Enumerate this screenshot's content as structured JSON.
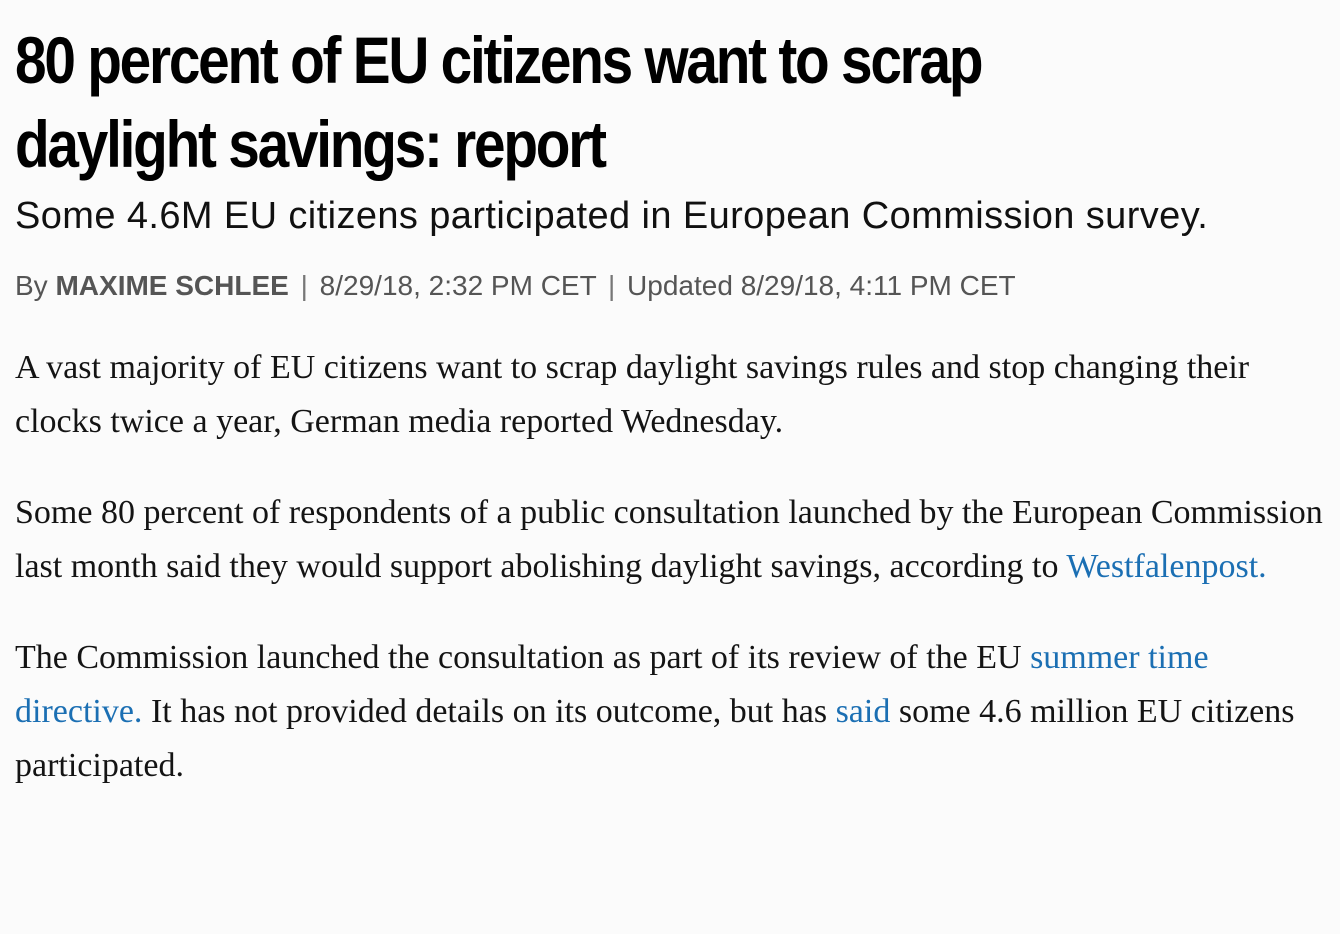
{
  "article": {
    "headline": "80 percent of EU citizens want to scrap daylight savings: report",
    "subheadline": "Some 4.6M EU citizens participated in European Commission survey.",
    "byline": {
      "by_label": "By",
      "author": "MAXIME SCHLEE",
      "separator": "|",
      "published": "8/29/18, 2:32 PM CET",
      "updated_label": "Updated",
      "updated": "8/29/18, 4:11 PM CET"
    },
    "paragraphs": {
      "p1": {
        "text": "A vast majority of EU citizens want to scrap daylight savings rules and stop changing their clocks twice a year, German media reported Wednesday."
      },
      "p2": {
        "text_before": "Some 80 percent of respondents of a public consultation launched by the European Commission last month said they would support abolishing daylight savings, according to ",
        "link": "Westfalenpost."
      },
      "p3": {
        "text_before": "The Commission launched the consultation as part of its review of the EU ",
        "link1": "summer time directive.",
        "text_middle": " It has not provided details on its outcome, but has ",
        "link2": "said",
        "text_after": " some 4.6 million EU citizens participated."
      }
    }
  },
  "colors": {
    "link": "#1b6fb3",
    "byline": "#555555",
    "background": "#fbfbfb"
  }
}
